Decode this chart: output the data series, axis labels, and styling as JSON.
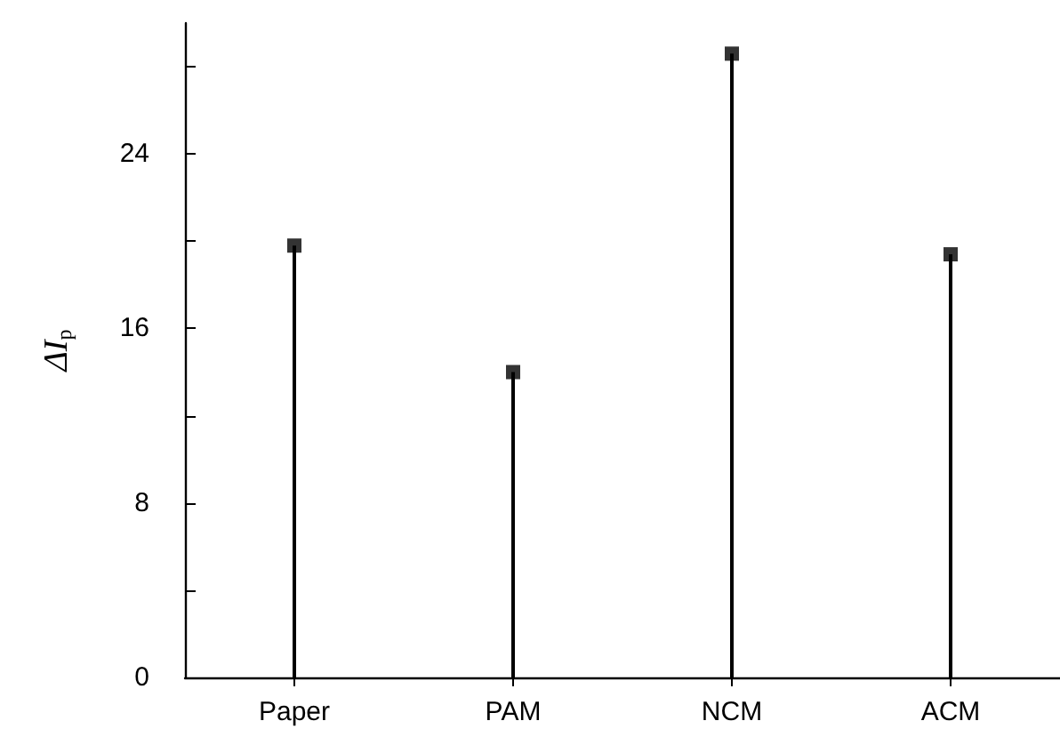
{
  "chart_data": {
    "type": "lollipop",
    "ylabel": "ΔI$_{p}$",
    "categories": [
      "Paper",
      "PAM",
      "NCM",
      "ACM"
    ],
    "values": [
      19.8,
      14.0,
      28.6,
      19.4
    ],
    "color": "#000000",
    "marker": "square",
    "ylim": [
      0,
      30
    ],
    "yticks": [
      0,
      {
        "value": 4,
        "label": null
      },
      8,
      {
        "value": 12,
        "label": null
      },
      16,
      {
        "value": 20,
        "label": null
      },
      24,
      {
        "value": 28,
        "label": null
      }
    ]
  }
}
